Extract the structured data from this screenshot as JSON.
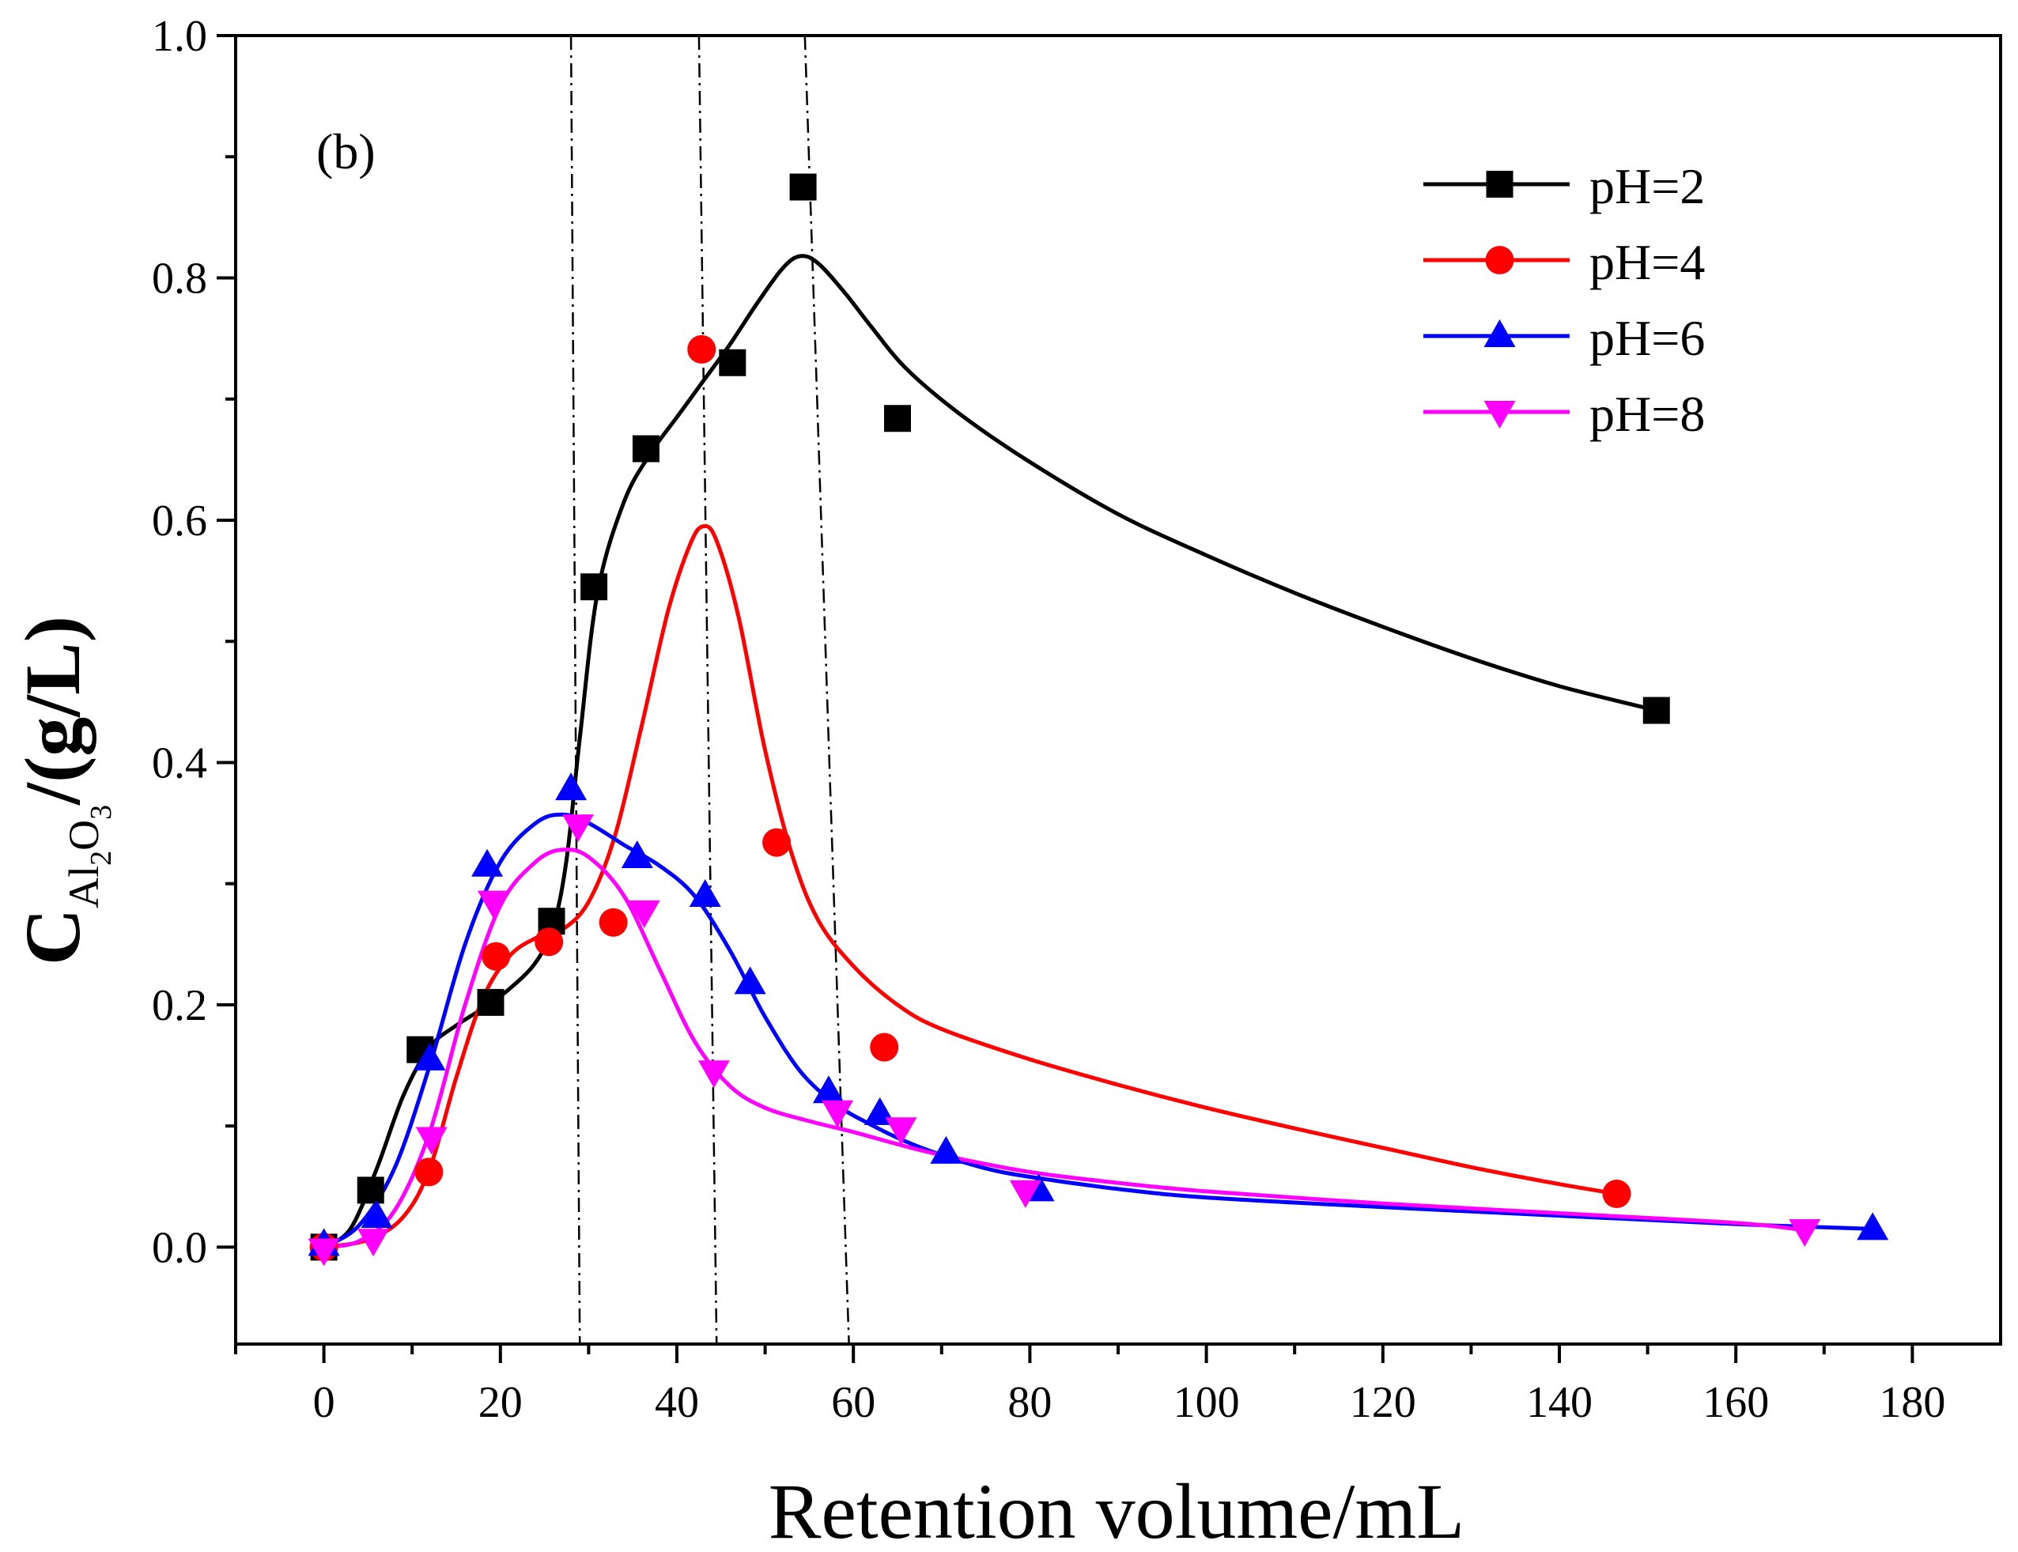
{
  "chart_data": {
    "type": "scatter",
    "panel_label": "(b)",
    "xlabel": "Retention volume/mL",
    "ylabel": {
      "main": "C",
      "sub_al": "Al",
      "sub_2": "2",
      "sub_o": "O",
      "sub_3": "3",
      "unit": "/(g/L)"
    },
    "xlim": [
      -10,
      190
    ],
    "ylim": [
      -0.08,
      1.0
    ],
    "x_ticks": [
      0,
      20,
      40,
      60,
      80,
      100,
      120,
      140,
      160,
      180
    ],
    "x_tick_labels": [
      "0",
      "20",
      "40",
      "60",
      "80",
      "100",
      "120",
      "140",
      "160",
      "180"
    ],
    "y_ticks": [
      0.0,
      0.2,
      0.4,
      0.6,
      0.8,
      1.0
    ],
    "y_tick_labels": [
      "0.0",
      "0.2",
      "0.4",
      "0.6",
      "0.8",
      "1.0"
    ],
    "grid": false,
    "legend_position": "top-right",
    "vertical_reference_lines": [
      {
        "x_top": 28.0,
        "x_bottom": 29.0
      },
      {
        "x_top": 42.5,
        "x_bottom": 44.5
      },
      {
        "x_top": 54.5,
        "x_bottom": 59.5
      }
    ],
    "series": [
      {
        "name": "pH=2",
        "color": "#000000",
        "marker": "square",
        "points": [
          [
            0,
            0.0
          ],
          [
            5.3,
            0.047
          ],
          [
            10.9,
            0.163
          ],
          [
            18.9,
            0.202
          ],
          [
            25.8,
            0.269
          ],
          [
            30.6,
            0.545
          ],
          [
            36.5,
            0.659
          ],
          [
            46.3,
            0.73
          ],
          [
            54.3,
            0.875
          ],
          [
            65.0,
            0.684
          ],
          [
            151.0,
            0.443
          ]
        ],
        "curve": [
          [
            0,
            0.0
          ],
          [
            3,
            0.015
          ],
          [
            6,
            0.065
          ],
          [
            9,
            0.125
          ],
          [
            12,
            0.165
          ],
          [
            15,
            0.183
          ],
          [
            18,
            0.197
          ],
          [
            21,
            0.213
          ],
          [
            24,
            0.235
          ],
          [
            26,
            0.265
          ],
          [
            27.5,
            0.32
          ],
          [
            29,
            0.42
          ],
          [
            31,
            0.54
          ],
          [
            34,
            0.615
          ],
          [
            37,
            0.655
          ],
          [
            40,
            0.685
          ],
          [
            43,
            0.715
          ],
          [
            46,
            0.745
          ],
          [
            49,
            0.778
          ],
          [
            52,
            0.808
          ],
          [
            54,
            0.818
          ],
          [
            56,
            0.812
          ],
          [
            59,
            0.788
          ],
          [
            62,
            0.76
          ],
          [
            66,
            0.725
          ],
          [
            72,
            0.688
          ],
          [
            80,
            0.648
          ],
          [
            90,
            0.605
          ],
          [
            100,
            0.571
          ],
          [
            110,
            0.54
          ],
          [
            120,
            0.512
          ],
          [
            130,
            0.486
          ],
          [
            140,
            0.463
          ],
          [
            151,
            0.443
          ]
        ]
      },
      {
        "name": "pH=4",
        "color": "#ff0000",
        "marker": "circle",
        "points": [
          [
            0,
            0.0
          ],
          [
            11.9,
            0.062
          ],
          [
            19.5,
            0.24
          ],
          [
            25.5,
            0.252
          ],
          [
            32.8,
            0.268
          ],
          [
            42.8,
            0.741
          ],
          [
            51.3,
            0.334
          ],
          [
            63.5,
            0.165
          ],
          [
            146.5,
            0.044
          ]
        ],
        "curve": [
          [
            0,
            0.0
          ],
          [
            5,
            0.006
          ],
          [
            9,
            0.025
          ],
          [
            12,
            0.065
          ],
          [
            15,
            0.14
          ],
          [
            18,
            0.205
          ],
          [
            21,
            0.24
          ],
          [
            24,
            0.255
          ],
          [
            27,
            0.262
          ],
          [
            30,
            0.285
          ],
          [
            33,
            0.34
          ],
          [
            36,
            0.43
          ],
          [
            39,
            0.525
          ],
          [
            41.5,
            0.58
          ],
          [
            43,
            0.595
          ],
          [
            44.5,
            0.583
          ],
          [
            47,
            0.52
          ],
          [
            50,
            0.41
          ],
          [
            53,
            0.325
          ],
          [
            56,
            0.27
          ],
          [
            60,
            0.232
          ],
          [
            65,
            0.2
          ],
          [
            70,
            0.18
          ],
          [
            80,
            0.155
          ],
          [
            90,
            0.134
          ],
          [
            100,
            0.115
          ],
          [
            110,
            0.098
          ],
          [
            120,
            0.082
          ],
          [
            130,
            0.066
          ],
          [
            140,
            0.052
          ],
          [
            146.5,
            0.044
          ]
        ]
      },
      {
        "name": "pH=6",
        "color": "#0000ff",
        "marker": "triangle-up",
        "points": [
          [
            0,
            0.002
          ],
          [
            6.0,
            0.025
          ],
          [
            12.0,
            0.155
          ],
          [
            18.5,
            0.315
          ],
          [
            28.0,
            0.378
          ],
          [
            35.5,
            0.322
          ],
          [
            43.2,
            0.29
          ],
          [
            48.3,
            0.218
          ],
          [
            57.2,
            0.128
          ],
          [
            63.0,
            0.11
          ],
          [
            70.5,
            0.078
          ],
          [
            81.0,
            0.047
          ],
          [
            175.5,
            0.015
          ]
        ],
        "curve": [
          [
            0,
            0.0
          ],
          [
            4,
            0.018
          ],
          [
            8,
            0.065
          ],
          [
            12,
            0.15
          ],
          [
            16,
            0.25
          ],
          [
            20,
            0.318
          ],
          [
            24,
            0.35
          ],
          [
            27,
            0.357
          ],
          [
            30,
            0.35
          ],
          [
            34,
            0.332
          ],
          [
            38,
            0.315
          ],
          [
            42,
            0.29
          ],
          [
            46,
            0.245
          ],
          [
            50,
            0.19
          ],
          [
            54,
            0.145
          ],
          [
            58,
            0.118
          ],
          [
            62,
            0.101
          ],
          [
            66,
            0.087
          ],
          [
            70,
            0.076
          ],
          [
            75,
            0.065
          ],
          [
            80,
            0.058
          ],
          [
            90,
            0.048
          ],
          [
            100,
            0.041
          ],
          [
            120,
            0.033
          ],
          [
            140,
            0.026
          ],
          [
            160,
            0.019
          ],
          [
            175.5,
            0.015
          ]
        ]
      },
      {
        "name": "pH=8",
        "color": "#ff00ff",
        "marker": "triangle-down",
        "points": [
          [
            0,
            -0.002
          ],
          [
            5.6,
            0.006
          ],
          [
            12.2,
            0.09
          ],
          [
            19.2,
            0.285
          ],
          [
            28.8,
            0.348
          ],
          [
            36.3,
            0.277
          ],
          [
            44.2,
            0.145
          ],
          [
            58.2,
            0.112
          ],
          [
            65.4,
            0.098
          ],
          [
            79.5,
            0.046
          ],
          [
            167.8,
            0.014
          ]
        ],
        "curve": [
          [
            0,
            0.0
          ],
          [
            4,
            0.005
          ],
          [
            8,
            0.03
          ],
          [
            12,
            0.095
          ],
          [
            16,
            0.2
          ],
          [
            20,
            0.282
          ],
          [
            24,
            0.318
          ],
          [
            27,
            0.328
          ],
          [
            30,
            0.322
          ],
          [
            34,
            0.29
          ],
          [
            38,
            0.23
          ],
          [
            42,
            0.17
          ],
          [
            46,
            0.133
          ],
          [
            50,
            0.115
          ],
          [
            55,
            0.104
          ],
          [
            60,
            0.095
          ],
          [
            65,
            0.085
          ],
          [
            70,
            0.076
          ],
          [
            80,
            0.062
          ],
          [
            90,
            0.053
          ],
          [
            100,
            0.046
          ],
          [
            120,
            0.036
          ],
          [
            140,
            0.028
          ],
          [
            160,
            0.02
          ],
          [
            167.8,
            0.014
          ]
        ]
      }
    ]
  }
}
